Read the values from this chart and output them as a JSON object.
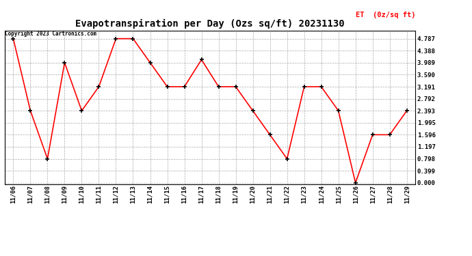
{
  "title": "Evapotranspiration per Day (Ozs sq/ft) 20231130",
  "legend_label": "ET  (0z/sq ft)",
  "copyright_text": "Copyright 2023 Cartronics.com",
  "x_labels": [
    "11/06",
    "11/07",
    "11/08",
    "11/09",
    "11/10",
    "11/11",
    "11/12",
    "11/13",
    "11/14",
    "11/15",
    "11/16",
    "11/17",
    "11/18",
    "11/19",
    "11/20",
    "11/21",
    "11/22",
    "11/23",
    "11/24",
    "11/25",
    "11/26",
    "11/27",
    "11/28",
    "11/29"
  ],
  "y_values": [
    4.787,
    2.393,
    0.798,
    3.989,
    2.393,
    3.191,
    4.787,
    4.787,
    3.989,
    3.191,
    3.191,
    4.089,
    3.191,
    3.191,
    2.393,
    1.596,
    0.798,
    3.191,
    3.191,
    2.393,
    0.0,
    1.596,
    1.596,
    2.393
  ],
  "yticks": [
    0.0,
    0.399,
    0.798,
    1.197,
    1.596,
    1.995,
    2.393,
    2.792,
    3.191,
    3.59,
    3.989,
    4.388,
    4.787
  ],
  "line_color": "red",
  "marker_color": "black",
  "grid_color": "#aaaaaa",
  "background_color": "white",
  "title_fontsize": 10,
  "tick_fontsize": 6.5,
  "legend_color": "red",
  "copyright_color": "black",
  "fig_width": 6.9,
  "fig_height": 3.75,
  "dpi": 100
}
